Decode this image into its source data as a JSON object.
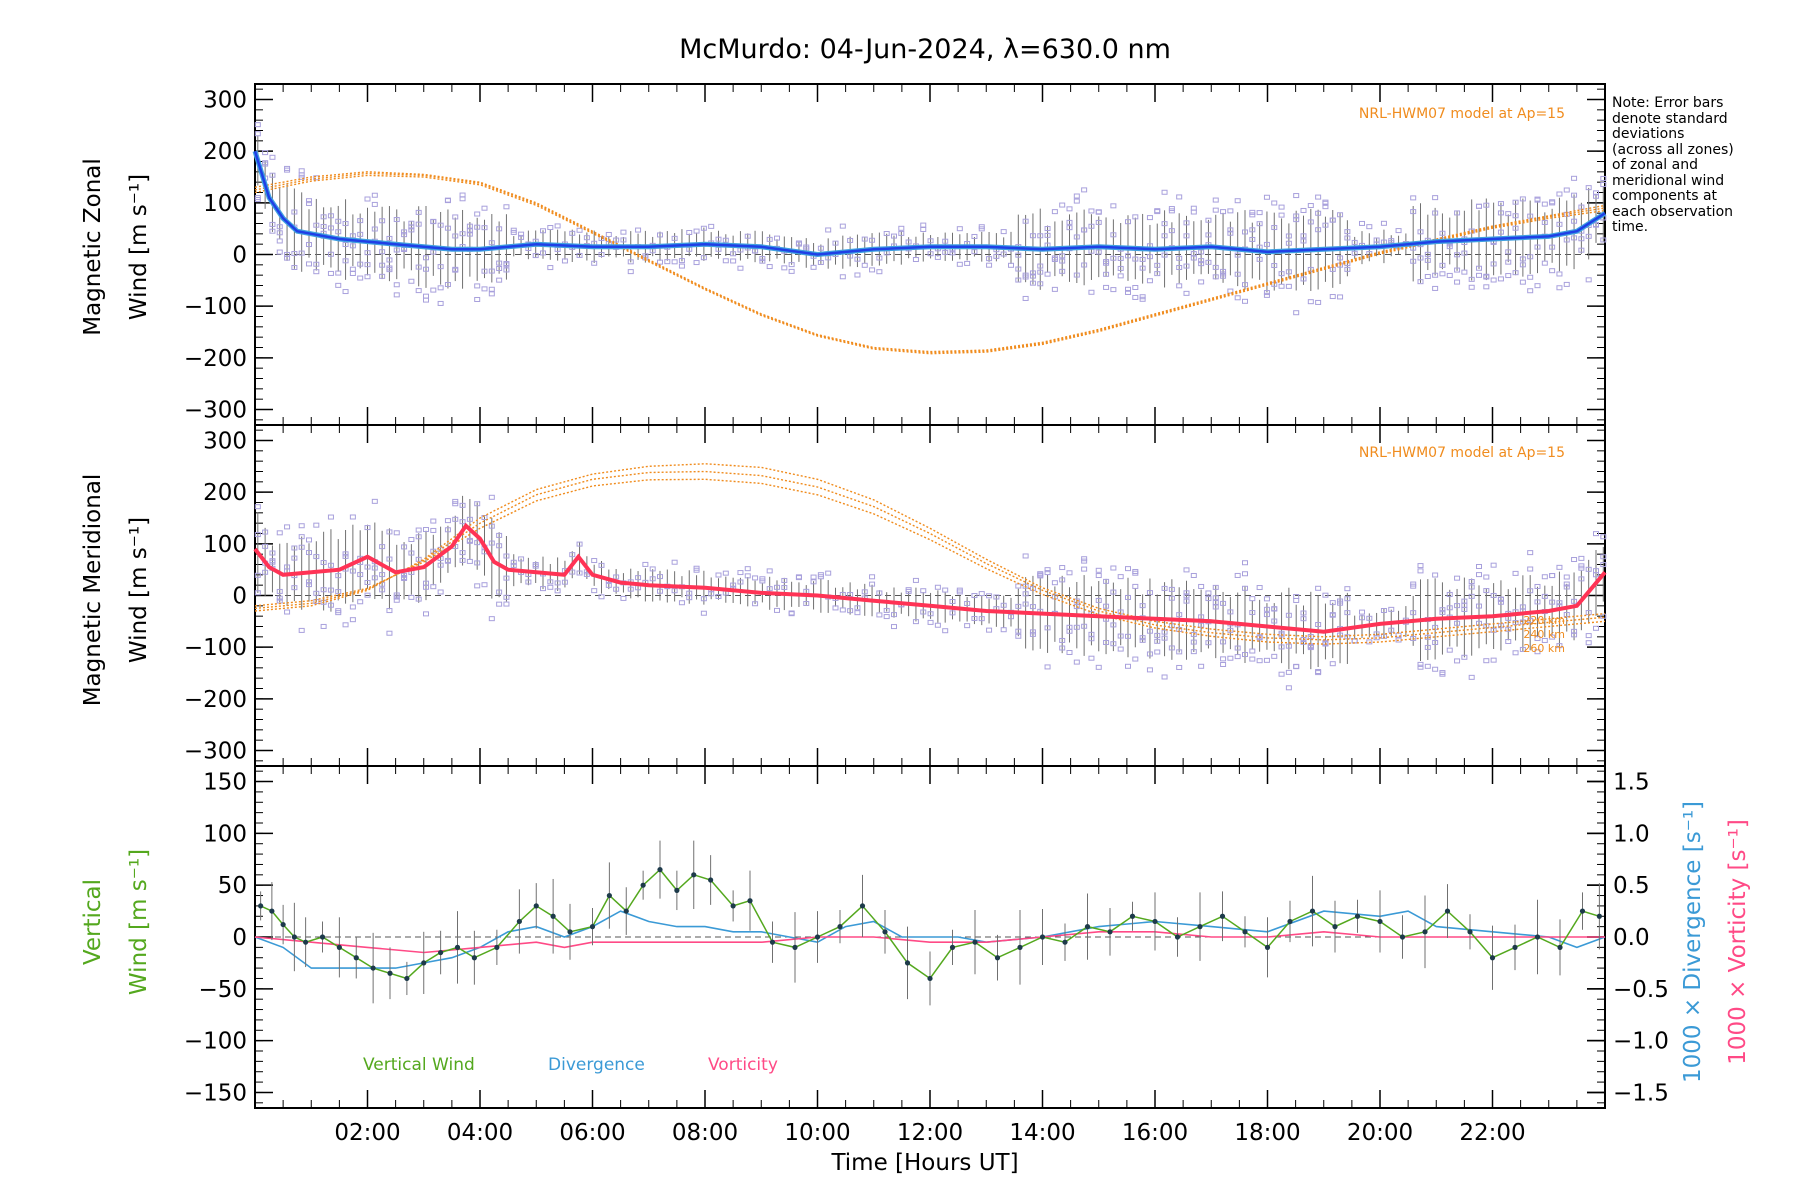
{
  "title": "McMurdo: 04-Jun-2024, λ=630.0 nm",
  "note_lines": [
    "Note: Error bars",
    "denote standard",
    "deviations",
    "(across all zones)",
    "of zonal and",
    "meridional wind",
    "components at",
    "each observation",
    "time."
  ],
  "colors": {
    "zonal_line": "#1f3fe6",
    "zonal_line_light": "#3fa0e0",
    "meridional_line": "#ff3355",
    "model": "#f08c1e",
    "zone_points": "#a8a0dc",
    "vertical": "#54a81e",
    "divergence": "#3b9ad6",
    "vorticity": "#ff4a86",
    "error_bar": "#707070"
  },
  "chart_data": [
    {
      "type": "line",
      "panel": "zonal",
      "ylabel": [
        "Magnetic Zonal",
        "Wind [m s⁻¹]"
      ],
      "ylim": [
        -330,
        330
      ],
      "yticks": [
        300,
        200,
        100,
        0,
        -100,
        -200,
        -300
      ],
      "xlim": [
        0,
        24
      ],
      "model_label": "NRL-HWM07 model at Ap=15",
      "series": [
        {
          "x": [
            0.0,
            0.25,
            0.5,
            0.75,
            1.0,
            1.5,
            2.0,
            2.5,
            3.0,
            3.5,
            4.0,
            4.5,
            5.0,
            6.0,
            7.0,
            8.0,
            9.0,
            10.0,
            11.0,
            12.0,
            13.0,
            14.0,
            15.0,
            16.0,
            17.0,
            18.0,
            19.0,
            20.0,
            21.0,
            22.0,
            23.0,
            23.5,
            24.0
          ],
          "y": [
            200,
            110,
            70,
            45,
            40,
            30,
            25,
            20,
            15,
            10,
            10,
            15,
            20,
            15,
            15,
            20,
            15,
            0,
            10,
            15,
            15,
            10,
            15,
            10,
            15,
            5,
            10,
            15,
            25,
            30,
            35,
            45,
            80
          ]
        }
      ],
      "model_curves": [
        {
          "x": [
            0,
            1,
            2,
            3,
            4,
            5,
            6,
            7,
            8,
            9,
            10,
            11,
            12,
            13,
            14,
            15,
            16,
            17,
            18,
            19,
            20,
            21,
            22,
            23,
            24
          ],
          "y": [
            130,
            150,
            160,
            155,
            140,
            100,
            45,
            -10,
            -65,
            -115,
            -155,
            -180,
            -188,
            -185,
            -170,
            -145,
            -115,
            -85,
            -55,
            -25,
            5,
            30,
            55,
            75,
            95
          ]
        },
        {
          "x": [
            0,
            1,
            2,
            3,
            4,
            5,
            6,
            7,
            8,
            9,
            10,
            11,
            12,
            13,
            14,
            15,
            16,
            17,
            18,
            19,
            20,
            21,
            22,
            23,
            24
          ],
          "y": [
            125,
            146,
            157,
            153,
            138,
            98,
            43,
            -12,
            -66,
            -116,
            -156,
            -181,
            -190,
            -187,
            -172,
            -147,
            -117,
            -87,
            -57,
            -27,
            3,
            28,
            53,
            73,
            90
          ]
        },
        {
          "x": [
            0,
            1,
            2,
            3,
            4,
            5,
            6,
            7,
            8,
            9,
            10,
            11,
            12,
            13,
            14,
            15,
            16,
            17,
            18,
            19,
            20,
            21,
            22,
            23,
            24
          ],
          "y": [
            120,
            142,
            153,
            150,
            135,
            95,
            41,
            -14,
            -68,
            -118,
            -158,
            -183,
            -192,
            -189,
            -174,
            -149,
            -119,
            -89,
            -59,
            -29,
            1,
            26,
            51,
            70,
            85
          ]
        }
      ]
    },
    {
      "type": "line",
      "panel": "meridional",
      "ylabel": [
        "Magnetic Meridional",
        "Wind [m s⁻¹]"
      ],
      "ylim": [
        -330,
        330
      ],
      "yticks": [
        300,
        200,
        100,
        0,
        -100,
        -200,
        -300
      ],
      "xlim": [
        0,
        24
      ],
      "model_label": "NRL-HWM07 model at Ap=15",
      "altitude_labels": [
        "220 km",
        "240 km",
        "260 km"
      ],
      "series": [
        {
          "x": [
            0.0,
            0.25,
            0.5,
            1.0,
            1.5,
            2.0,
            2.5,
            3.0,
            3.5,
            3.75,
            4.0,
            4.25,
            4.5,
            5.0,
            5.5,
            5.75,
            6.0,
            6.5,
            7.0,
            8.0,
            9.0,
            10.0,
            11.0,
            12.0,
            13.0,
            14.0,
            15.0,
            16.0,
            17.0,
            18.0,
            19.0,
            20.0,
            21.0,
            22.0,
            23.0,
            23.5,
            24.0
          ],
          "y": [
            90,
            55,
            40,
            45,
            50,
            75,
            45,
            55,
            95,
            135,
            110,
            65,
            50,
            45,
            40,
            75,
            40,
            25,
            20,
            15,
            5,
            0,
            -10,
            -20,
            -30,
            -35,
            -40,
            -45,
            -50,
            -60,
            -70,
            -55,
            -45,
            -40,
            -30,
            -20,
            45
          ]
        }
      ],
      "model_curves": [
        {
          "x": [
            0,
            1,
            2,
            3,
            4,
            5,
            6,
            7,
            8,
            9,
            10,
            11,
            12,
            13,
            14,
            15,
            16,
            17,
            18,
            19,
            20,
            21,
            22,
            23,
            24
          ],
          "y": [
            -30,
            -20,
            10,
            70,
            150,
            205,
            235,
            250,
            255,
            248,
            225,
            185,
            130,
            70,
            15,
            -25,
            -50,
            -65,
            -75,
            -80,
            -75,
            -65,
            -55,
            -45,
            -35
          ]
        },
        {
          "x": [
            0,
            1,
            2,
            3,
            4,
            5,
            6,
            7,
            8,
            9,
            10,
            11,
            12,
            13,
            14,
            15,
            16,
            17,
            18,
            19,
            20,
            21,
            22,
            23,
            24
          ],
          "y": [
            -25,
            -15,
            12,
            68,
            140,
            195,
            225,
            238,
            240,
            232,
            210,
            172,
            120,
            62,
            10,
            -30,
            -57,
            -72,
            -82,
            -86,
            -82,
            -72,
            -62,
            -52,
            -42
          ]
        },
        {
          "x": [
            0,
            1,
            2,
            3,
            4,
            5,
            6,
            7,
            8,
            9,
            10,
            11,
            12,
            13,
            14,
            15,
            16,
            17,
            18,
            19,
            20,
            21,
            22,
            23,
            24
          ],
          "y": [
            -20,
            -10,
            14,
            65,
            130,
            183,
            212,
            224,
            225,
            217,
            195,
            158,
            108,
            52,
            2,
            -37,
            -63,
            -79,
            -90,
            -94,
            -90,
            -80,
            -70,
            -60,
            -50
          ]
        }
      ]
    },
    {
      "type": "line",
      "panel": "vertical",
      "ylabel": [
        "Vertical",
        "Wind [m s⁻¹]"
      ],
      "ylim": [
        -165,
        165
      ],
      "yticks": [
        150,
        100,
        50,
        0,
        -50,
        -100,
        -150
      ],
      "xlim": [
        0,
        24
      ],
      "xticks": [
        "02:00",
        "04:00",
        "06:00",
        "08:00",
        "10:00",
        "12:00",
        "14:00",
        "16:00",
        "18:00",
        "20:00",
        "22:00"
      ],
      "xtick_values": [
        2,
        4,
        6,
        8,
        10,
        12,
        14,
        16,
        18,
        20,
        22
      ],
      "xlabel": "Time [Hours UT]",
      "y2label_divergence": "1000 × Divergence [s⁻¹]",
      "y2label_vorticity": "1000 × Vorticity [s⁻¹]",
      "y2lim": [
        -1.65,
        1.65
      ],
      "y2ticks": [
        1.5,
        1.0,
        0.5,
        0.0,
        -0.5,
        -1.0,
        -1.5
      ],
      "y2ticklabels": [
        "1.5",
        "1.0",
        "0.5",
        "0.0",
        "−0.5",
        "−1.0",
        "−1.5"
      ],
      "legend": [
        "Vertical Wind",
        "Divergence",
        "Vorticity"
      ],
      "series": [
        {
          "name": "Vertical Wind",
          "x": [
            0.1,
            0.3,
            0.5,
            0.7,
            0.9,
            1.2,
            1.5,
            1.8,
            2.1,
            2.4,
            2.7,
            3.0,
            3.3,
            3.6,
            3.9,
            4.3,
            4.7,
            5.0,
            5.3,
            5.6,
            6.0,
            6.3,
            6.6,
            6.9,
            7.2,
            7.5,
            7.8,
            8.1,
            8.5,
            8.8,
            9.2,
            9.6,
            10.0,
            10.4,
            10.8,
            11.2,
            11.6,
            12.0,
            12.4,
            12.8,
            13.2,
            13.6,
            14.0,
            14.4,
            14.8,
            15.2,
            15.6,
            16.0,
            16.4,
            16.8,
            17.2,
            17.6,
            18.0,
            18.4,
            18.8,
            19.2,
            19.6,
            20.0,
            20.4,
            20.8,
            21.2,
            21.6,
            22.0,
            22.4,
            22.8,
            23.2,
            23.6,
            23.9
          ],
          "y": [
            30,
            25,
            12,
            0,
            -5,
            0,
            -10,
            -20,
            -30,
            -35,
            -40,
            -25,
            -15,
            -10,
            -20,
            -10,
            15,
            30,
            20,
            5,
            10,
            40,
            25,
            50,
            65,
            45,
            60,
            55,
            30,
            35,
            -5,
            -10,
            0,
            10,
            30,
            5,
            -25,
            -40,
            -10,
            -5,
            -20,
            -10,
            0,
            -5,
            10,
            5,
            20,
            15,
            0,
            10,
            20,
            5,
            -10,
            15,
            25,
            10,
            20,
            15,
            0,
            5,
            25,
            5,
            -20,
            -10,
            0,
            -10,
            25,
            20
          ]
        },
        {
          "name": "Divergence",
          "x": [
            0.0,
            0.5,
            1.0,
            1.5,
            2.0,
            2.5,
            3.0,
            3.5,
            4.0,
            4.5,
            5.0,
            5.5,
            6.0,
            6.5,
            7.0,
            7.5,
            8.0,
            8.5,
            9.0,
            9.5,
            10.0,
            10.5,
            11.0,
            11.5,
            12.0,
            12.5,
            13.0,
            14.0,
            15.0,
            16.0,
            17.0,
            18.0,
            19.0,
            20.0,
            20.5,
            21.0,
            22.0,
            23.0,
            23.5,
            24.0
          ],
          "y": [
            0.0,
            -0.1,
            -0.3,
            -0.3,
            -0.3,
            -0.3,
            -0.25,
            -0.2,
            -0.1,
            0.05,
            0.1,
            0.0,
            0.1,
            0.25,
            0.15,
            0.1,
            0.1,
            0.05,
            0.05,
            0.0,
            -0.05,
            0.1,
            0.15,
            0.0,
            0.0,
            0.0,
            -0.05,
            0.0,
            0.1,
            0.15,
            0.1,
            0.05,
            0.25,
            0.2,
            0.25,
            0.1,
            0.05,
            0.0,
            -0.1,
            0.0
          ]
        },
        {
          "name": "Vorticity",
          "x": [
            0.0,
            1.0,
            2.0,
            3.0,
            4.0,
            5.0,
            5.5,
            6.0,
            7.0,
            8.0,
            9.0,
            10.0,
            11.0,
            12.0,
            13.0,
            14.0,
            15.0,
            16.0,
            17.0,
            18.0,
            19.0,
            20.0,
            21.0,
            22.0,
            23.0,
            24.0
          ],
          "y": [
            0.0,
            -0.05,
            -0.1,
            -0.15,
            -0.1,
            -0.05,
            -0.1,
            -0.05,
            -0.05,
            -0.05,
            -0.05,
            0.0,
            0.0,
            -0.05,
            -0.05,
            0.0,
            0.05,
            0.05,
            0.0,
            0.0,
            0.05,
            0.0,
            0.0,
            0.0,
            0.0,
            0.0
          ]
        }
      ]
    }
  ]
}
